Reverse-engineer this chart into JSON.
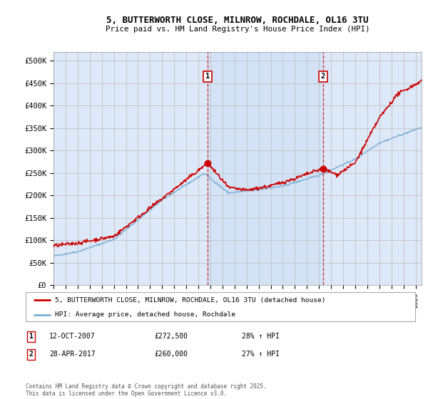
{
  "title_line1": "5, BUTTERWORTH CLOSE, MILNROW, ROCHDALE, OL16 3TU",
  "title_line2": "Price paid vs. HM Land Registry's House Price Index (HPI)",
  "ylim": [
    0,
    520000
  ],
  "yticks": [
    0,
    50000,
    100000,
    150000,
    200000,
    250000,
    300000,
    350000,
    400000,
    450000,
    500000
  ],
  "ytick_labels": [
    "£0",
    "£50K",
    "£100K",
    "£150K",
    "£200K",
    "£250K",
    "£300K",
    "£350K",
    "£400K",
    "£450K",
    "£500K"
  ],
  "background_color": "#ffffff",
  "plot_bg_color": "#dde8f8",
  "grid_color": "#bbbbbb",
  "red_line_color": "#cc0000",
  "blue_line_color": "#7ab0d4",
  "sale1_date_x": 2007.78,
  "sale1_price": 272500,
  "sale2_date_x": 2017.33,
  "sale2_price": 260000,
  "legend_label_red": "5, BUTTERWORTH CLOSE, MILNROW, ROCHDALE, OL16 3TU (detached house)",
  "legend_label_blue": "HPI: Average price, detached house, Rochdale",
  "table_row1": [
    "1",
    "12-OCT-2007",
    "£272,500",
    "28% ↑ HPI"
  ],
  "table_row2": [
    "2",
    "28-APR-2017",
    "£260,000",
    "27% ↑ HPI"
  ],
  "footer": "Contains HM Land Registry data © Crown copyright and database right 2025.\nThis data is licensed under the Open Government Licence v3.0.",
  "xmin": 1995,
  "xmax": 2025.5
}
